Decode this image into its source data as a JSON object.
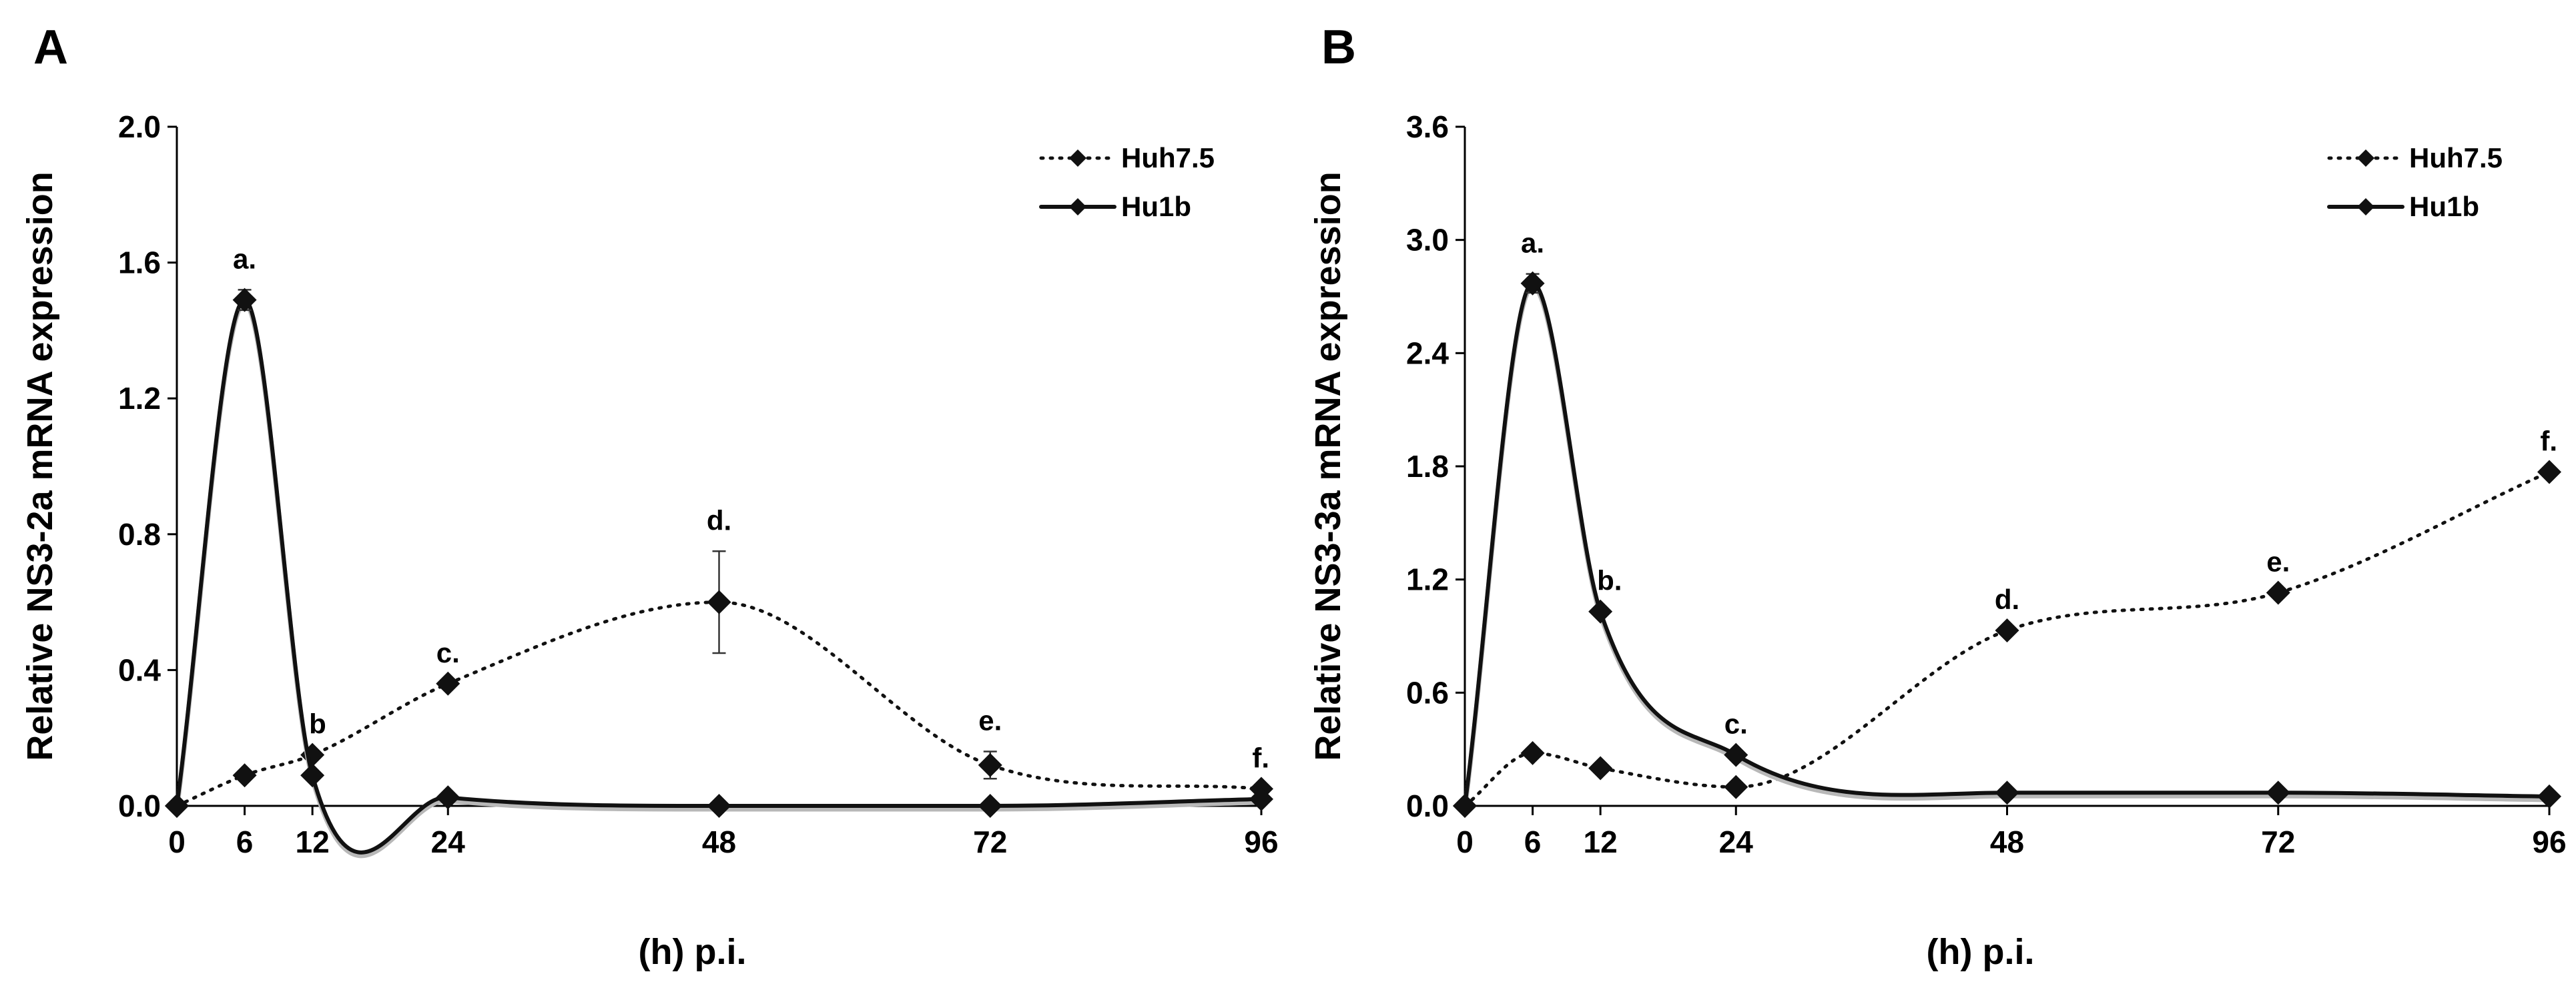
{
  "chart_data": [
    {
      "type": "line",
      "panel_label": "A",
      "ylabel": "Relative NS3-2a mRNA expression",
      "xlabel": "(h) p.i.",
      "x": [
        0,
        6,
        12,
        24,
        48,
        72,
        96
      ],
      "x_tick_labels": [
        "0",
        "6",
        "12",
        "24",
        "48",
        "72",
        "96"
      ],
      "ylim": [
        0,
        2.0
      ],
      "y_ticks": [
        0.0,
        0.4,
        0.8,
        1.2,
        1.6,
        2.0
      ],
      "y_tick_labels": [
        "0.0",
        "0.4",
        "0.8",
        "1.2",
        "1.6",
        "2.0"
      ],
      "series": [
        {
          "name": "Huh7.5",
          "style": "dotted",
          "values": [
            0.0,
            0.09,
            0.15,
            0.36,
            0.6,
            0.12,
            0.05
          ],
          "errors": [
            0,
            0,
            0,
            0,
            0.15,
            0.04,
            0
          ],
          "annotations": [
            "",
            "",
            "b",
            "c.",
            "d.",
            "e.",
            "f."
          ]
        },
        {
          "name": "Hu1b",
          "style": "solid",
          "values": [
            0.0,
            1.49,
            0.09,
            0.025,
            0.0,
            0.0,
            0.02
          ],
          "errors": [
            0,
            0.03,
            0,
            0,
            0,
            0,
            0
          ],
          "annotations": [
            "",
            "a.",
            "",
            "",
            "",
            "",
            ""
          ]
        }
      ]
    },
    {
      "type": "line",
      "panel_label": "B",
      "ylabel": "Relative NS3-3a mRNA expression",
      "xlabel": "(h) p.i.",
      "x": [
        0,
        6,
        12,
        24,
        48,
        72,
        96
      ],
      "x_tick_labels": [
        "0",
        "6",
        "12",
        "24",
        "48",
        "72",
        "96"
      ],
      "ylim": [
        0,
        3.6
      ],
      "y_ticks": [
        0.0,
        0.6,
        1.2,
        1.8,
        2.4,
        3.0,
        3.6
      ],
      "y_tick_labels": [
        "0.0",
        "0.6",
        "1.2",
        "1.8",
        "2.4",
        "3.0",
        "3.6"
      ],
      "series": [
        {
          "name": "Huh7.5",
          "style": "dotted",
          "values": [
            0.0,
            0.28,
            0.2,
            0.1,
            0.93,
            1.13,
            1.77
          ],
          "errors": [
            0,
            0,
            0,
            0,
            0,
            0,
            0
          ],
          "annotations": [
            "",
            "",
            "",
            "",
            "d.",
            "e.",
            "f."
          ]
        },
        {
          "name": "Hu1b",
          "style": "solid",
          "values": [
            0.0,
            2.77,
            1.03,
            0.27,
            0.07,
            0.07,
            0.05
          ],
          "errors": [
            0,
            0.05,
            0,
            0,
            0,
            0,
            0
          ],
          "annotations": [
            "",
            "a.",
            "b.",
            "c.",
            "",
            "",
            ""
          ]
        }
      ]
    }
  ]
}
